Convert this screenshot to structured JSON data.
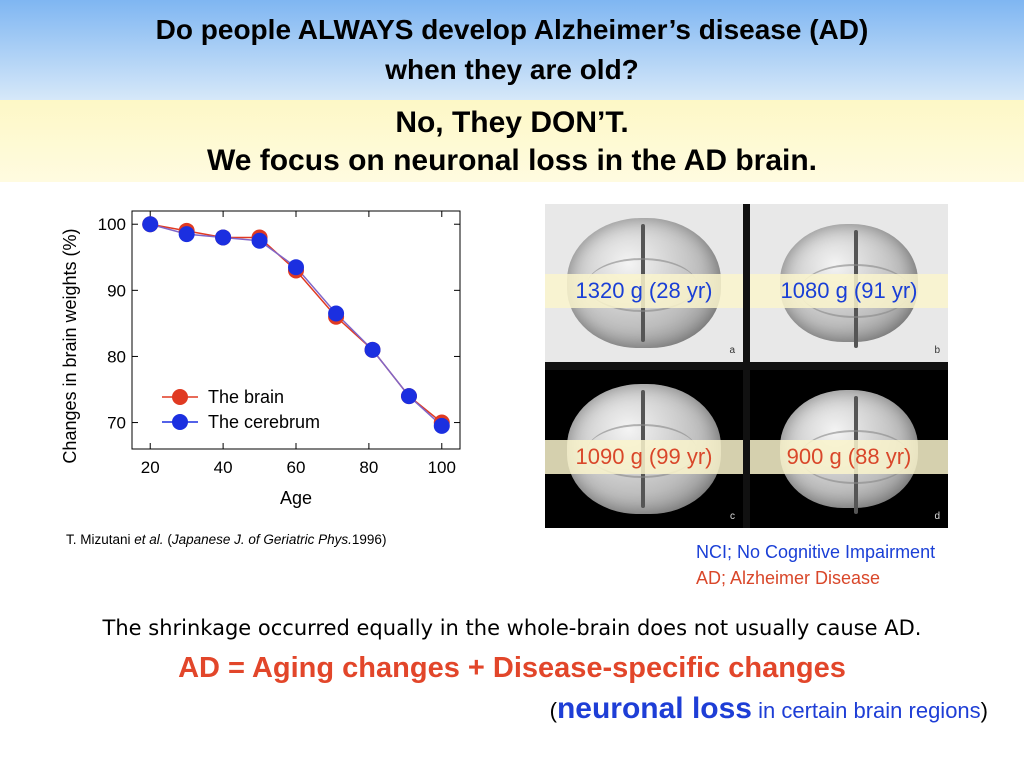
{
  "slide": {
    "title_line1": "Do people ALWAYS develop Alzheimer’s disease (AD)",
    "title_line2": "when they are old?",
    "answer_line1": "No, They DON’T.",
    "answer_line2": "We focus on neuronal loss in the AD brain.",
    "colors": {
      "header_blue": "#7fb6f2",
      "answer_yellow": "#fdf8c6",
      "red": "#e2462a",
      "blue": "#1e3ed6"
    }
  },
  "chart_data": {
    "type": "line",
    "xlabel": "Age",
    "ylabel": "Changes in brain weights (%)",
    "xlim": [
      15,
      105
    ],
    "ylim": [
      66,
      102
    ],
    "xticks": [
      20,
      40,
      60,
      80,
      100
    ],
    "yticks": [
      70,
      80,
      90,
      100
    ],
    "grid": false,
    "legend_position": "lower-left",
    "series": [
      {
        "name": "The brain",
        "color": "#e03a22",
        "x": [
          20,
          30,
          40,
          50,
          60,
          71,
          81,
          91,
          100
        ],
        "y": [
          100,
          99,
          98,
          98,
          93,
          86,
          81,
          74,
          70
        ]
      },
      {
        "name": "The cerebrum",
        "color": "#1b2fe0",
        "x": [
          20,
          30,
          40,
          50,
          60,
          71,
          81,
          91,
          100
        ],
        "y": [
          100,
          98.5,
          98,
          97.5,
          93.5,
          86.5,
          81,
          74,
          69.5
        ]
      }
    ]
  },
  "citation": {
    "authors": "T. Mizutani ",
    "etal": "et al.",
    "open": " (",
    "journal": "Japanese J. of Geriatric Phys.",
    "year": "1996)"
  },
  "brains": [
    {
      "label": "1320 g (28 yr)",
      "group": "NCI",
      "letter": "a"
    },
    {
      "label": "1080 g (91 yr)",
      "group": "NCI",
      "letter": "b"
    },
    {
      "label": "1090 g (99 yr)",
      "group": "AD",
      "letter": "c"
    },
    {
      "label": "900 g (88 yr)",
      "group": "AD",
      "letter": "d"
    }
  ],
  "legend": {
    "nci": "NCI; No Cognitive Impairment",
    "ad": "AD; Alzheimer Disease"
  },
  "bottom": {
    "shrinkage": "The shrinkage occurred equally in the whole-brain does not usually cause AD.",
    "equation": "AD = Aging changes + Disease-specific changes",
    "note_open": "(",
    "note_big": "neuronal loss",
    "note_rest": " in certain brain regions",
    "note_close": ")"
  }
}
